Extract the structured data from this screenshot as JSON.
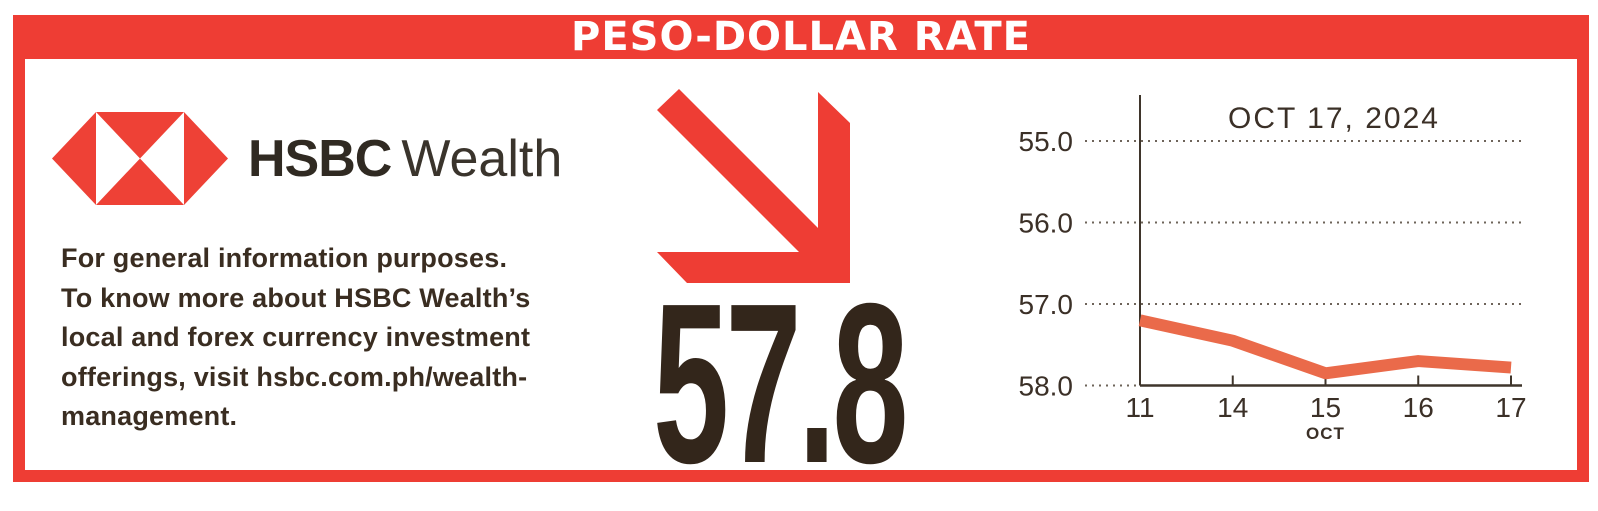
{
  "banner": {
    "title": "PESO-DOLLAR RATE"
  },
  "brand": {
    "logo": "hsbc-hexagon",
    "name_bold": "HSBC",
    "name_light": "Wealth"
  },
  "disclaimer": {
    "lines": [
      "For general information purposes.",
      "To know more about HSBC Wealth’s",
      "local and forex currency investment",
      "offerings, visit hsbc.com.ph/wealth-",
      "management."
    ]
  },
  "rate": {
    "value": "57.8",
    "trend_icon": "arrow-down-right"
  },
  "chart_data": {
    "type": "line",
    "title": "OCT 17, 2024",
    "xlabel": "OCT",
    "categories": [
      "11",
      "14",
      "15",
      "16",
      "17"
    ],
    "values": [
      57.2,
      57.45,
      57.85,
      57.7,
      57.78
    ],
    "yticks": [
      55.0,
      56.0,
      57.0,
      58.0
    ],
    "ytick_labels": [
      "55.0",
      "56.0",
      "57.0",
      "58.0"
    ],
    "ylim": [
      55.0,
      58.0
    ],
    "y_axis_inverted": true,
    "grid": "dotted-horizontal",
    "legend": "none",
    "line_color": "#EA6A4A"
  },
  "colors": {
    "red": "#EE3D34",
    "dark_text": "#3A2D21",
    "rate_text": "#33261B",
    "line": "#EA6A4A",
    "grid_dots": "#6E645A",
    "axis": "#3F352B"
  }
}
